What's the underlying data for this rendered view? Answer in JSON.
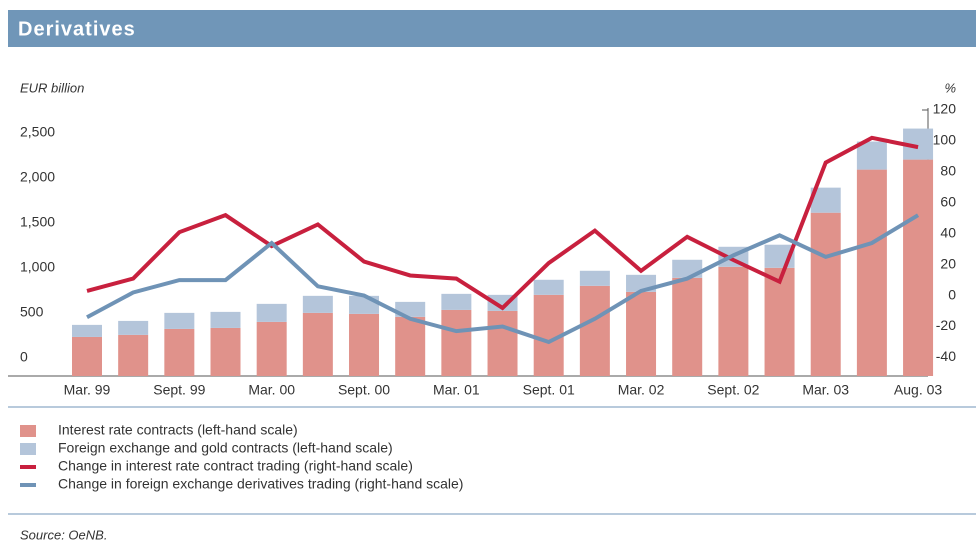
{
  "chart_data": {
    "type": "bar",
    "title": "Derivatives",
    "y_label": "EUR billion",
    "y2_label": "%",
    "categories": [
      "Mar. 99",
      null,
      "Sept. 99",
      null,
      "Mar. 00",
      null,
      "Sept. 00",
      null,
      "Mar. 01",
      null,
      "Sept. 01",
      null,
      "Mar. 02",
      null,
      "Sept. 02",
      null,
      "Mar. 03",
      null,
      "Aug. 03"
    ],
    "series": [
      {
        "name": "Interest rate contracts (left-hand scale)",
        "type": "bar",
        "color": "#e0928b",
        "values": [
          433,
          456,
          522,
          533,
          600,
          700,
          689,
          656,
          733,
          722,
          900,
          1000,
          933,
          1089,
          1211,
          1200,
          1811,
          2289,
          2400
        ]
      },
      {
        "name": "Foreign exchange and gold contracts (left-hand scale)",
        "type": "bar",
        "color": "#b4c5da",
        "values": [
          134,
          155,
          178,
          178,
          200,
          189,
          200,
          166,
          178,
          178,
          167,
          167,
          189,
          200,
          222,
          256,
          278,
          311,
          344
        ]
      },
      {
        "name": "Change in interest rate contract trading (right-hand scale)",
        "type": "line",
        "axis": "y2",
        "color": "#c8203e",
        "values": [
          3,
          11,
          41,
          52,
          32,
          46,
          22,
          13,
          11,
          -8,
          21,
          42,
          16,
          38,
          23,
          9,
          86,
          102,
          96
        ]
      },
      {
        "name": "Change in foreign exchange derivatives trading (right-hand scale)",
        "type": "line",
        "axis": "y2",
        "color": "#6f93b6",
        "values": [
          -14,
          2,
          10,
          10,
          34,
          6,
          0,
          -15,
          -23,
          -20,
          -30,
          -15,
          3,
          11,
          26,
          39,
          25,
          34,
          52
        ]
      }
    ],
    "ylim": [
      0,
      2950
    ],
    "yticks": [
      0,
      500,
      {
        "value": 1000,
        "label": "1,000"
      },
      {
        "value": 1500,
        "label": "1,500"
      },
      {
        "value": 2000,
        "label": "2,000"
      },
      {
        "value": 2500,
        "label": "2,500"
      }
    ],
    "y2lim": [
      -52,
      120
    ],
    "y2ticks": [
      -40,
      -20,
      0,
      20,
      40,
      60,
      80,
      100,
      120
    ],
    "source": "Source: OeNB."
  }
}
